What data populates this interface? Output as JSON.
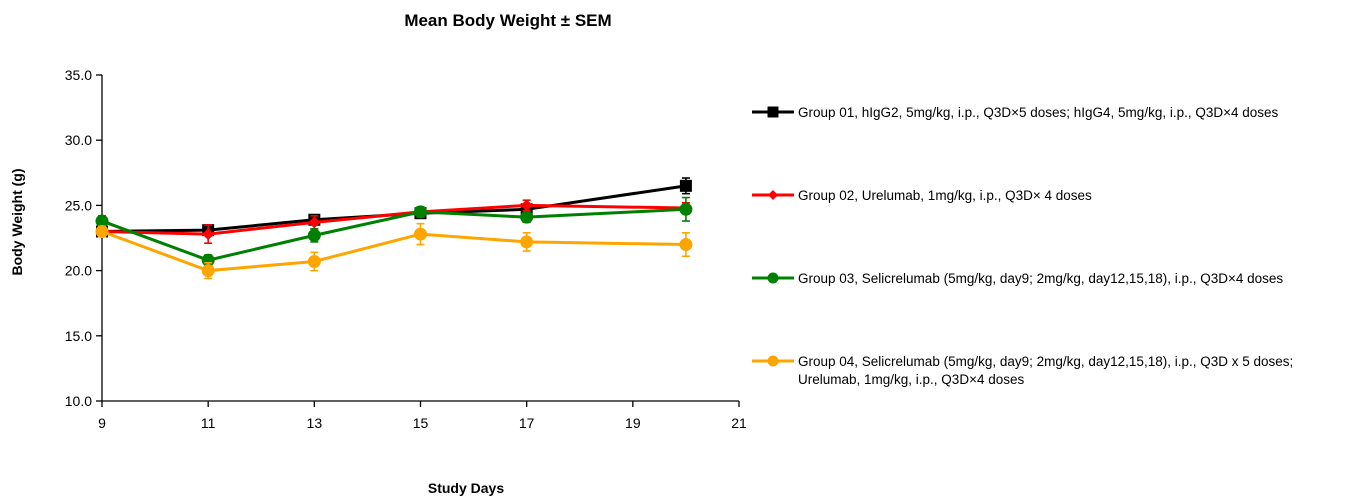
{
  "chart_data": {
    "type": "line",
    "title": "Mean Body Weight ± SEM",
    "xlabel": "Study Days",
    "ylabel": "Body Weight (g)",
    "xlim": [
      9,
      21
    ],
    "ylim": [
      10.0,
      35.0
    ],
    "x_ticks": [
      "9",
      "11",
      "13",
      "15",
      "17",
      "19",
      "21"
    ],
    "y_ticks": [
      "10.0",
      "15.0",
      "20.0",
      "25.0",
      "30.0",
      "35.0"
    ],
    "x_tick_values": [
      9,
      11,
      13,
      15,
      17,
      19,
      21
    ],
    "y_tick_values": [
      10,
      15,
      20,
      25,
      30,
      35
    ],
    "grid": false,
    "legend_position": "right",
    "series": [
      {
        "name": "Group 01, hIgG2, 5mg/kg, i.p., Q3D×5 doses; hIgG4, 5mg/kg, i.p., Q3D×4 doses",
        "name_lines": [
          "Group 01, hIgG2, 5mg/kg, i.p., Q3D×5 doses; hIgG4, 5mg/kg, i.p., Q3D×4 doses"
        ],
        "color": "#000000",
        "marker": "square",
        "x": [
          9,
          11,
          13,
          15,
          17,
          20
        ],
        "y": [
          23.0,
          23.1,
          23.9,
          24.4,
          24.7,
          26.5
        ],
        "sem": [
          0.3,
          0.4,
          0.3,
          0.3,
          0.3,
          0.6
        ]
      },
      {
        "name": "Group 02, Urelumab, 1mg/kg, i.p., Q3D× 4 doses",
        "name_lines": [
          "Group 02, Urelumab, 1mg/kg, i.p., Q3D× 4 doses"
        ],
        "color": "#ff0000",
        "marker": "diamond",
        "x": [
          9,
          11,
          13,
          15,
          17,
          20
        ],
        "y": [
          23.0,
          22.8,
          23.7,
          24.5,
          25.0,
          24.8
        ],
        "sem": [
          0.4,
          0.7,
          0.5,
          0.3,
          0.4,
          0.4
        ]
      },
      {
        "name": "Group 03, Selicrelumab (5mg/kg, day9; 2mg/kg, day12,15,18), i.p., Q3D×4 doses",
        "name_lines": [
          "Group 03, Selicrelumab (5mg/kg, day9; 2mg/kg, day12,15,18), i.p., Q3D×4 doses"
        ],
        "color": "#008000",
        "marker": "circle",
        "x": [
          9,
          11,
          13,
          15,
          17,
          20
        ],
        "y": [
          23.8,
          20.8,
          22.7,
          24.5,
          24.1,
          24.7
        ],
        "sem": [
          0.4,
          0.4,
          0.5,
          0.4,
          0.4,
          0.9
        ]
      },
      {
        "name": "Group 04, Selicrelumab (5mg/kg, day9; 2mg/kg, day12,15,18), i.p., Q3D x 5 doses; Urelumab, 1mg/kg, i.p., Q3D×4 doses",
        "name_lines": [
          "Group 04, Selicrelumab (5mg/kg, day9; 2mg/kg, day12,15,18), i.p., Q3D x 5 doses;",
          "Urelumab, 1mg/kg, i.p., Q3D×4 doses"
        ],
        "color": "#ffa500",
        "marker": "circle",
        "x": [
          9,
          11,
          13,
          15,
          17,
          20
        ],
        "y": [
          23.0,
          20.0,
          20.7,
          22.8,
          22.2,
          22.0
        ],
        "sem": [
          0.4,
          0.6,
          0.7,
          0.8,
          0.7,
          0.9
        ]
      }
    ]
  }
}
